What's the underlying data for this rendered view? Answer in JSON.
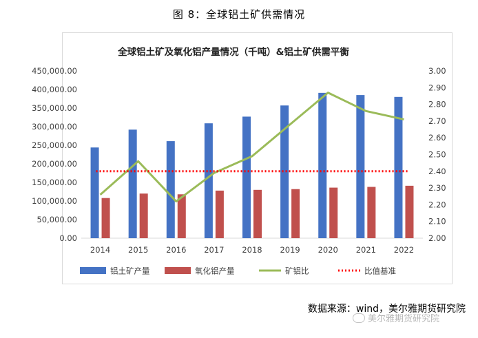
{
  "figure": {
    "caption": "图 8：全球铝土矿供需情况"
  },
  "source": {
    "text": "数据来源：wind，美尔雅期货研究院"
  },
  "watermark": {
    "text": "美尔雅期货研究院",
    "icon": "wechat-icon"
  },
  "chart_data": {
    "type": "bar",
    "title": "全球铝土矿及氧化铝产量情况（千吨）&铝土矿供需平衡",
    "categories": [
      "2014",
      "2015",
      "2016",
      "2017",
      "2018",
      "2019",
      "2020",
      "2021",
      "2022"
    ],
    "series": [
      {
        "name": "铝土矿产量",
        "type": "bar",
        "axis": "left",
        "color": "#4472c4",
        "values": [
          244000,
          292000,
          261000,
          309000,
          327000,
          357000,
          391000,
          385000,
          380000
        ]
      },
      {
        "name": "氧化铝产量",
        "type": "bar",
        "axis": "left",
        "color": "#c0504d",
        "values": [
          108000,
          120000,
          118000,
          128000,
          130000,
          132000,
          136000,
          138000,
          141000
        ]
      },
      {
        "name": "矿铝比",
        "type": "line",
        "axis": "right",
        "color": "#9bbb59",
        "values": [
          2.26,
          2.46,
          2.22,
          2.39,
          2.49,
          2.68,
          2.87,
          2.76,
          2.71
        ]
      },
      {
        "name": "比值基准",
        "type": "dotted-line",
        "axis": "right",
        "color": "#ff0000",
        "values": [
          2.4,
          2.4,
          2.4,
          2.4,
          2.4,
          2.4,
          2.4,
          2.4,
          2.4
        ]
      }
    ],
    "y_left": {
      "min": 0,
      "max": 450000,
      "step": 50000,
      "tick_labels": [
        "0.00",
        "50,000.00",
        "100,000.00",
        "150,000.00",
        "200,000.00",
        "250,000.00",
        "300,000.00",
        "350,000.00",
        "400,000.00",
        "450,000.00"
      ]
    },
    "y_right": {
      "min": 2.0,
      "max": 3.0,
      "step": 0.1,
      "tick_labels": [
        "2.00",
        "2.10",
        "2.20",
        "2.30",
        "2.40",
        "2.50",
        "2.60",
        "2.70",
        "2.80",
        "2.90",
        "3.00"
      ]
    },
    "grid": false,
    "legend": "bottom"
  }
}
